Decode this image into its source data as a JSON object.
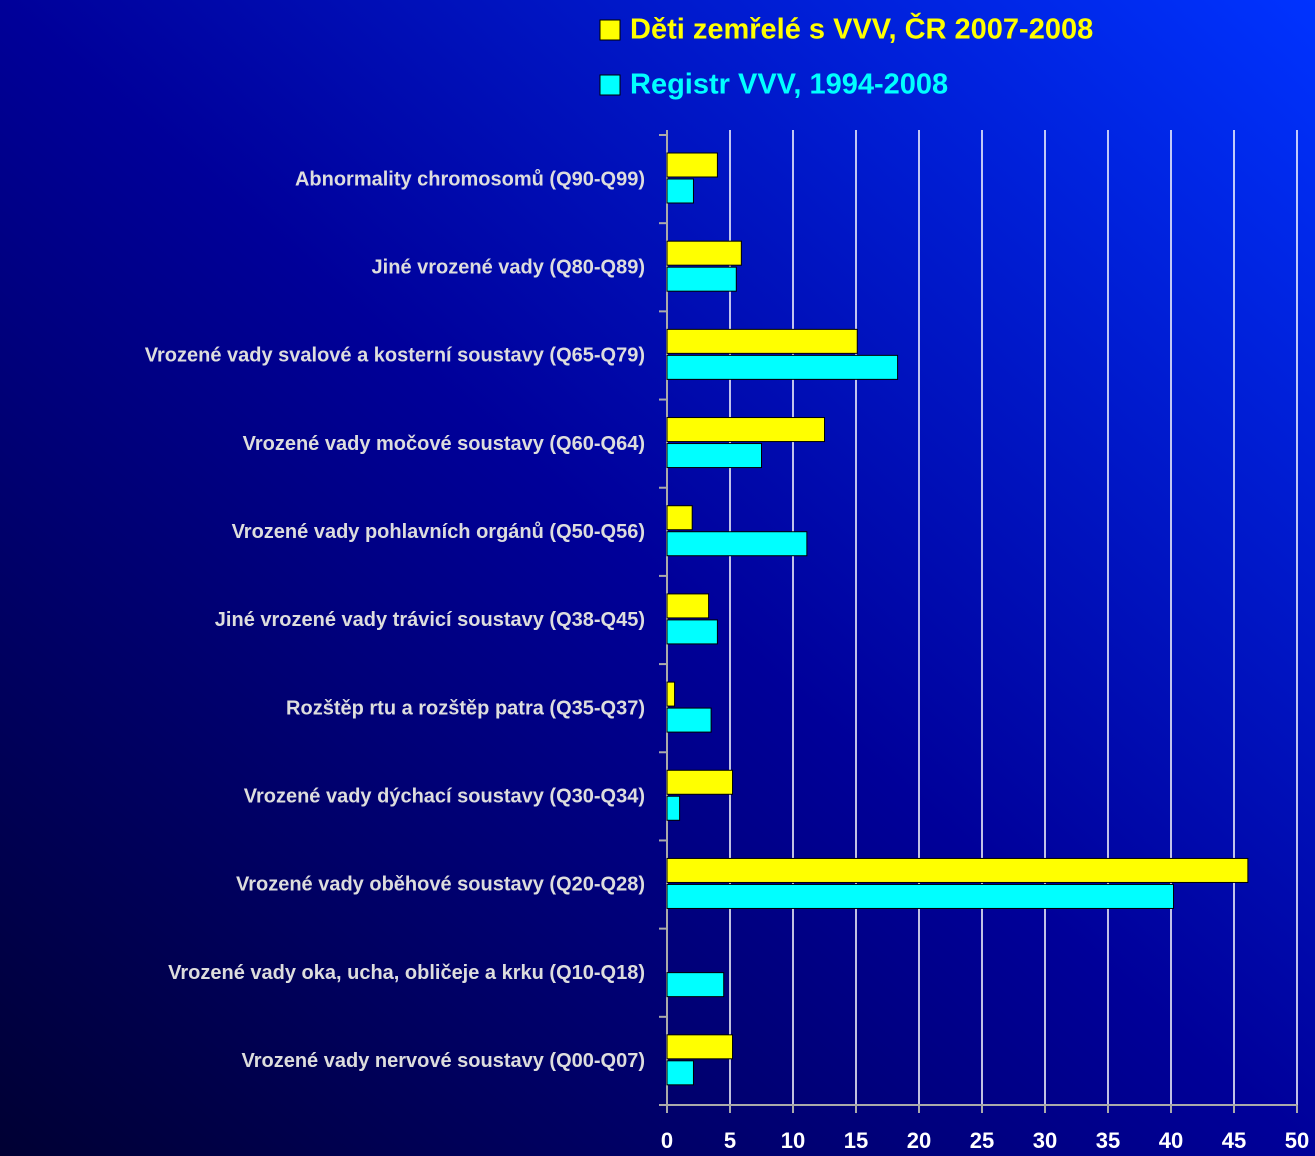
{
  "chart_data": {
    "type": "barh",
    "categories": [
      "Abnormality chromosomů (Q90-Q99)",
      "Jiné vrozené vady (Q80-Q89)",
      "Vrozené vady svalové a kosterní soustavy (Q65-Q79)",
      "Vrozené vady močové soustavy (Q60-Q64)",
      "Vrozené vady pohlavních orgánů (Q50-Q56)",
      "Jiné vrozené vady trávicí soustavy (Q38-Q45)",
      "Rozštěp rtu a rozštěp patra (Q35-Q37)",
      "Vrozené vady dýchací soustavy (Q30-Q34)",
      "Vrozené vady oběhové soustavy (Q20-Q28)",
      "Vrozené vady oka, ucha, obličeje a krku (Q10-Q18)",
      "Vrozené vady nervové soustavy (Q00-Q07)"
    ],
    "series": [
      {
        "name": "Děti zemřelé s VVV, ČR 2007-2008",
        "color": "#ffff00",
        "values": [
          4.0,
          5.9,
          15.1,
          12.5,
          2.0,
          3.3,
          0.6,
          5.2,
          46.1,
          0,
          5.2
        ]
      },
      {
        "name": "Registr VVV, 1994-2008",
        "color": "#00ffff",
        "values": [
          2.1,
          5.5,
          18.3,
          7.5,
          11.1,
          4.0,
          3.5,
          1.0,
          40.2,
          4.5,
          2.1
        ]
      }
    ],
    "xlim": [
      0,
      50
    ],
    "xticks": [
      0,
      5,
      10,
      15,
      20,
      25,
      30,
      35,
      40,
      45,
      50
    ],
    "grid": true
  }
}
